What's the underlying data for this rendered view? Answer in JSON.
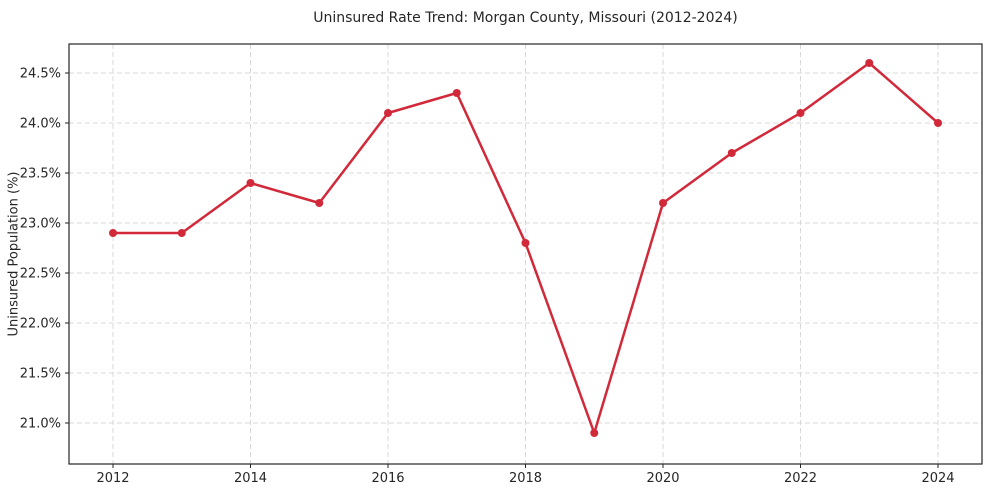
{
  "chart_data": {
    "type": "line",
    "title": "Uninsured Rate Trend: Morgan County, Missouri (2012-2024)",
    "xlabel": "",
    "ylabel": "Uninsured Population (%)",
    "x": [
      2012,
      2013,
      2014,
      2015,
      2016,
      2017,
      2018,
      2019,
      2020,
      2021,
      2022,
      2023,
      2024
    ],
    "series": [
      {
        "name": "Uninsured rate",
        "values": [
          22.9,
          22.9,
          23.4,
          23.2,
          24.1,
          24.3,
          22.8,
          20.9,
          23.2,
          23.7,
          24.1,
          24.6,
          24.0
        ]
      }
    ],
    "xtick_values": [
      2012,
      2014,
      2016,
      2018,
      2020,
      2022,
      2024
    ],
    "xtick_labels": [
      "2012",
      "2014",
      "2016",
      "2018",
      "2020",
      "2022",
      "2024"
    ],
    "ytick_values": [
      21.0,
      21.5,
      22.0,
      22.5,
      23.0,
      23.5,
      24.0,
      24.5
    ],
    "ytick_labels": [
      "21.0%",
      "21.5%",
      "22.0%",
      "22.5%",
      "23.0%",
      "23.5%",
      "24.0%",
      "24.5%"
    ],
    "xlim": [
      2011.36,
      2024.64
    ],
    "ylim": [
      20.59,
      24.79
    ],
    "grid": true,
    "grid_style": "dashed",
    "legend": "none",
    "colors": {
      "line": "#d2293a",
      "marker": "#d2293a",
      "grid": "#d8d8d8",
      "axis": "#262626",
      "text": "#262626",
      "background": "#ffffff"
    }
  }
}
